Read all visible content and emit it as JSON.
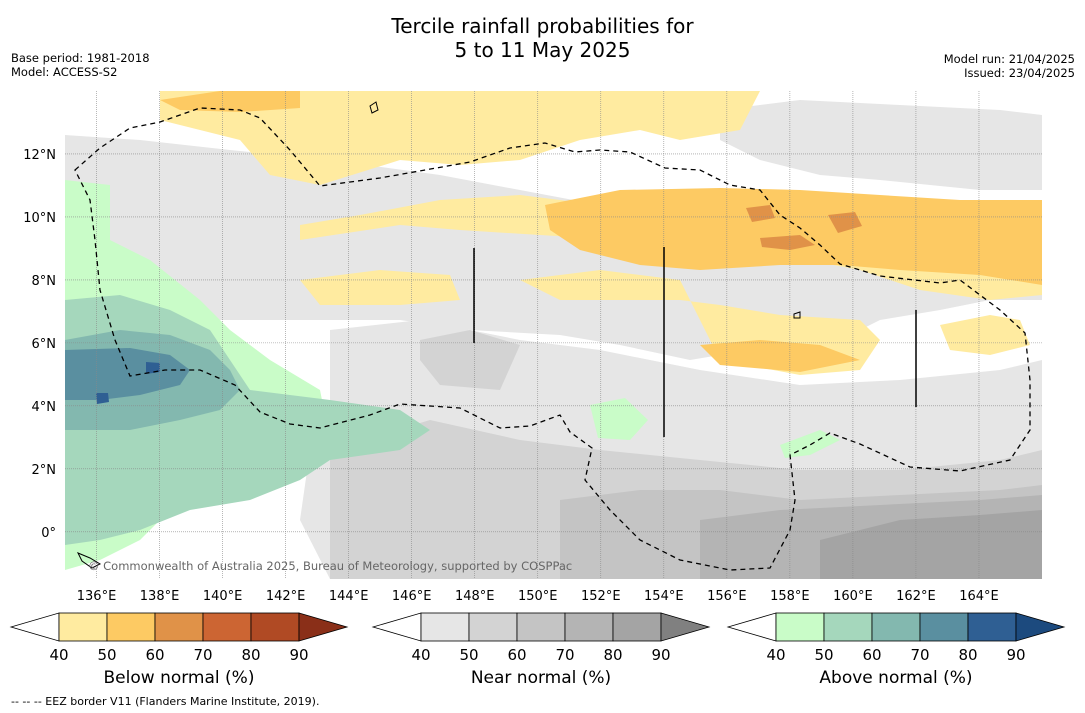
{
  "header": {
    "title_line1": "Tercile rainfall probabilities for",
    "title_line2": "5 to 11 May 2025",
    "base_period": "Base period: 1981-2018",
    "model": "Model: ACCESS-S2",
    "model_run": "Model run: 21/04/2025",
    "issued": "Issued: 23/04/2025"
  },
  "map": {
    "lon_range": [
      135,
      166
    ],
    "lat_range": [
      -1.5,
      14
    ],
    "lon_ticks": [
      {
        "value": 136,
        "label": "136°E"
      },
      {
        "value": 138,
        "label": "138°E"
      },
      {
        "value": 140,
        "label": "140°E"
      },
      {
        "value": 142,
        "label": "142°E"
      },
      {
        "value": 144,
        "label": "144°E"
      },
      {
        "value": 146,
        "label": "146°E"
      },
      {
        "value": 148,
        "label": "148°E"
      },
      {
        "value": 150,
        "label": "150°E"
      },
      {
        "value": 152,
        "label": "152°E"
      },
      {
        "value": 154,
        "label": "154°E"
      },
      {
        "value": 156,
        "label": "156°E"
      },
      {
        "value": 158,
        "label": "158°E"
      },
      {
        "value": 160,
        "label": "160°E"
      },
      {
        "value": 162,
        "label": "162°E"
      },
      {
        "value": 164,
        "label": "164°E"
      }
    ],
    "lat_ticks": [
      {
        "value": 12,
        "label": "12°N"
      },
      {
        "value": 10,
        "label": "10°N"
      },
      {
        "value": 8,
        "label": "8°N"
      },
      {
        "value": 6,
        "label": "6°N"
      },
      {
        "value": 4,
        "label": "4°N"
      },
      {
        "value": 2,
        "label": "2°N"
      },
      {
        "value": 0,
        "label": "0°"
      }
    ],
    "copyright": "© Commonwealth of Australia 2025, Bureau of Meteorology, supported by COSPPac",
    "colors": {
      "below": [
        "#ffeba0",
        "#fdca63",
        "#e09248",
        "#cc6533",
        "#b04a24",
        "#8a2f18"
      ],
      "near": [
        "#e6e6e6",
        "#d3d3d3",
        "#c4c4c4",
        "#b4b4b4",
        "#a4a4a4",
        "#808080"
      ],
      "above": [
        "#c9fcc8",
        "#a5d7bc",
        "#83b8af",
        "#5a8fa0",
        "#2f5f93",
        "#1c4a7e"
      ]
    }
  },
  "colorbars": [
    {
      "title": "Below normal (%)",
      "ticks": [
        "40",
        "50",
        "60",
        "70",
        "80",
        "90"
      ],
      "palette": "below"
    },
    {
      "title": "Near normal (%)",
      "ticks": [
        "40",
        "50",
        "60",
        "70",
        "80",
        "90"
      ],
      "palette": "near"
    },
    {
      "title": "Above normal (%)",
      "ticks": [
        "40",
        "50",
        "60",
        "70",
        "80",
        "90"
      ],
      "palette": "above"
    }
  ],
  "footnote": "--  --  -- EEZ border V11 (Flanders Marine Institute, 2019)."
}
